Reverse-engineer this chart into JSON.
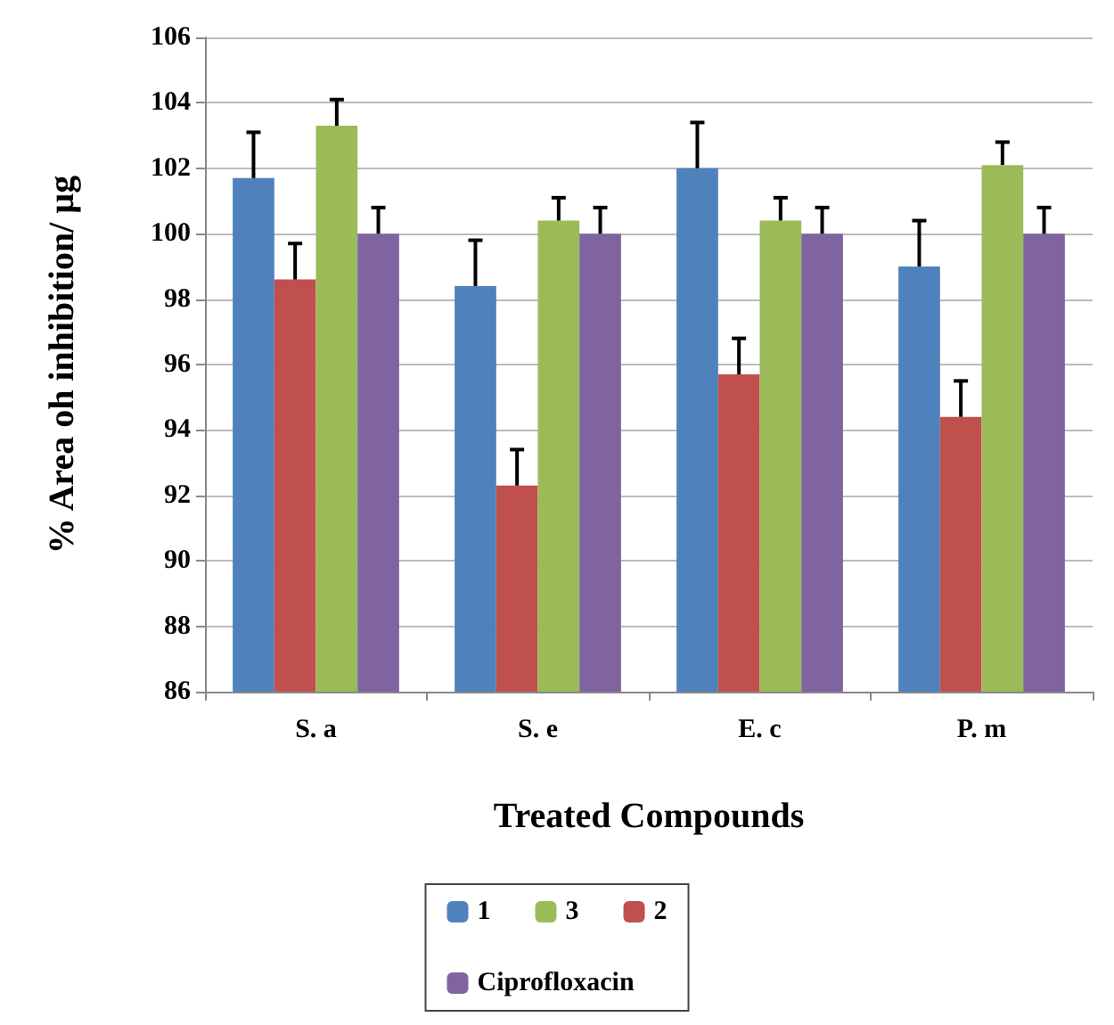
{
  "chart_data": {
    "type": "bar",
    "xlabel": "Treated Compounds",
    "ylabel": "% Area oh inhibition/ µg",
    "categories": [
      "S. a",
      "S. e",
      "E. c",
      "P. m"
    ],
    "series": [
      {
        "name": "1",
        "color": "#4f81bd",
        "values": [
          101.7,
          98.4,
          102,
          99
        ],
        "errors": [
          [
            101.7,
            103.1
          ],
          [
            98.4,
            99.8
          ],
          [
            102,
            103.4
          ],
          [
            99,
            100.4
          ]
        ]
      },
      {
        "name": "2",
        "color": "#c0504d",
        "values": [
          98.6,
          92.3,
          95.7,
          94.4
        ],
        "errors": [
          [
            98.6,
            99.7
          ],
          [
            92.3,
            93.4
          ],
          [
            95.7,
            96.8
          ],
          [
            94.4,
            95.5
          ]
        ]
      },
      {
        "name": "3",
        "color": "#9bbb59",
        "values": [
          103.3,
          100.4,
          100.4,
          102.1
        ],
        "errors": [
          [
            103.3,
            104.1
          ],
          [
            100.4,
            101.1
          ],
          [
            100.4,
            101.1
          ],
          [
            102.1,
            102.8
          ]
        ]
      },
      {
        "name": "Ciprofloxacin",
        "color": "#8064a2",
        "values": [
          100,
          100,
          100,
          100
        ],
        "errors": [
          [
            100,
            100.8
          ],
          [
            100,
            100.8
          ],
          [
            100,
            100.8
          ],
          [
            100,
            100.8
          ]
        ]
      }
    ],
    "ylim": [
      86,
      106
    ],
    "yticks": [
      86,
      88,
      90,
      92,
      94,
      96,
      98,
      100,
      102,
      104,
      106
    ],
    "grid": "y",
    "legend": "bottom"
  }
}
